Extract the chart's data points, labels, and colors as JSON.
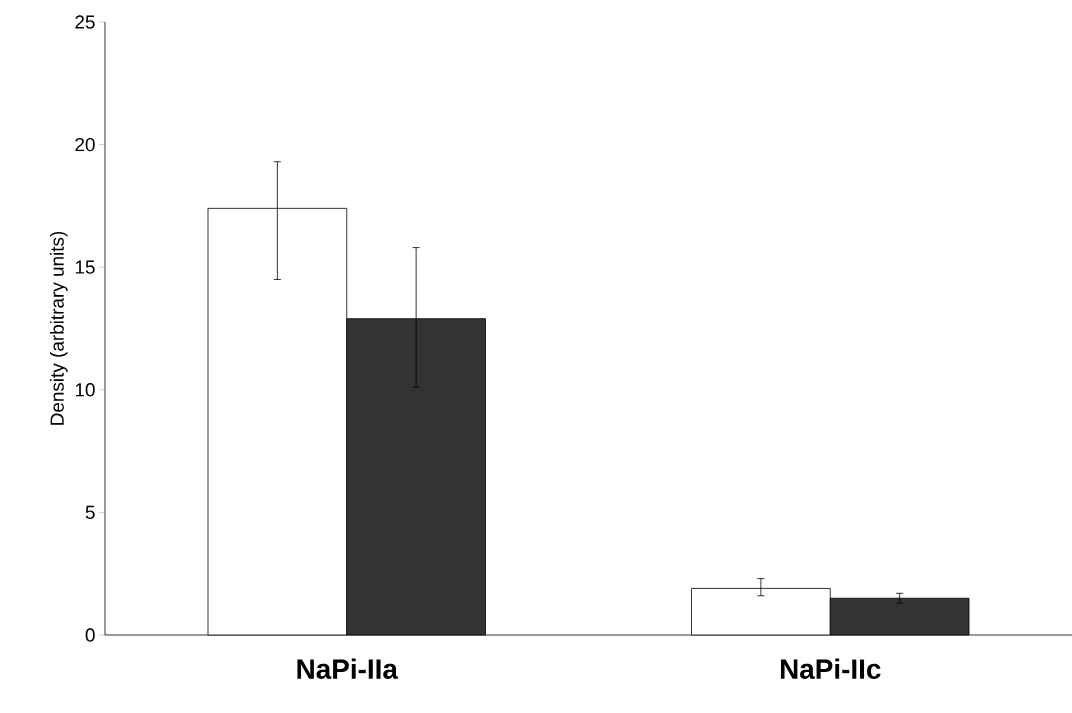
{
  "chart_data": {
    "type": "bar",
    "ylabel": "Density (arbitrary units)",
    "categories": [
      "NaPi-IIa",
      "NaPi-IIc"
    ],
    "series": [
      {
        "color": "#ffffff",
        "values": [
          17.4,
          1.9
        ],
        "errors": [
          [
            14.5,
            19.3
          ],
          [
            1.6,
            2.3
          ]
        ]
      },
      {
        "color": "#333333",
        "values": [
          12.9,
          1.5
        ],
        "errors": [
          [
            10.1,
            15.8
          ],
          [
            1.3,
            1.7
          ]
        ]
      }
    ],
    "ylim": [
      0,
      25
    ],
    "yticks": [
      0,
      5,
      10,
      15,
      20,
      25
    ],
    "grid": false
  }
}
